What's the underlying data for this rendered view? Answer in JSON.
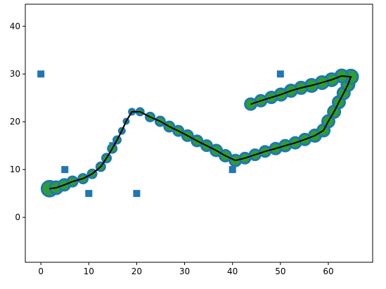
{
  "chart_data": {
    "type": "scatter",
    "xlim": [
      -3.25,
      69.25
    ],
    "ylim": [
      -9.4,
      44.6
    ],
    "xticks": [
      0,
      10,
      20,
      30,
      40,
      50,
      60
    ],
    "yticks": [
      0,
      10,
      20,
      30,
      40
    ],
    "grid": false,
    "series": [
      {
        "color": "#1f77b4",
        "marker": "square",
        "x": [
          0,
          5,
          10,
          15,
          20,
          40,
          50
        ],
        "y": [
          30,
          10,
          5,
          15,
          5,
          10,
          30
        ]
      },
      {
        "color": "#2ca02c",
        "edge_color": "#1f77b4",
        "line_color": "#000000",
        "marker": "circle",
        "x": [
          1.8,
          3.2,
          4.9,
          6.6,
          8.8,
          10.7,
          12.5,
          13.7,
          14.9,
          15.9,
          16.9,
          17.8,
          19.0,
          20.7,
          22.8,
          24.9,
          26.8,
          28.7,
          30.6,
          32.6,
          34.6,
          36.6,
          38.5,
          40.6,
          42.6,
          44.7,
          46.8,
          49.0,
          51.0,
          53.1,
          55.1,
          57.2,
          59.0,
          60.0,
          61.2,
          62.2,
          63.2,
          64.1,
          64.7,
          62.8,
          60.7,
          58.7,
          56.5,
          54.3,
          52.2,
          50.1,
          48.1,
          45.9,
          43.8
        ],
        "y": [
          6.0,
          6.2,
          6.8,
          7.5,
          8.1,
          9.1,
          10.6,
          12.4,
          14.4,
          16.2,
          18.1,
          20.1,
          22.1,
          22.1,
          21.0,
          20.1,
          19.0,
          18.1,
          17.1,
          16.0,
          15.0,
          14.0,
          12.9,
          11.9,
          12.4,
          13.1,
          13.8,
          14.4,
          15.0,
          15.6,
          16.3,
          17.1,
          18.2,
          20.1,
          22.1,
          24.1,
          26.0,
          27.8,
          29.4,
          29.6,
          28.8,
          28.2,
          27.6,
          27.1,
          26.5,
          25.7,
          25.1,
          24.4,
          23.7
        ],
        "sizes": [
          11,
          9,
          8,
          7,
          6.5,
          6,
          6,
          6,
          6,
          5,
          4,
          3.5,
          4,
          5,
          6,
          6.5,
          7,
          7,
          7.5,
          7.5,
          7.5,
          8,
          8,
          8,
          7.5,
          7.5,
          7.5,
          8,
          8,
          8,
          8,
          8.5,
          8.5,
          8.5,
          8.5,
          8.5,
          8.5,
          9,
          10,
          9,
          9,
          9,
          9,
          8.5,
          8.5,
          8.5,
          8,
          8,
          8
        ]
      }
    ]
  }
}
